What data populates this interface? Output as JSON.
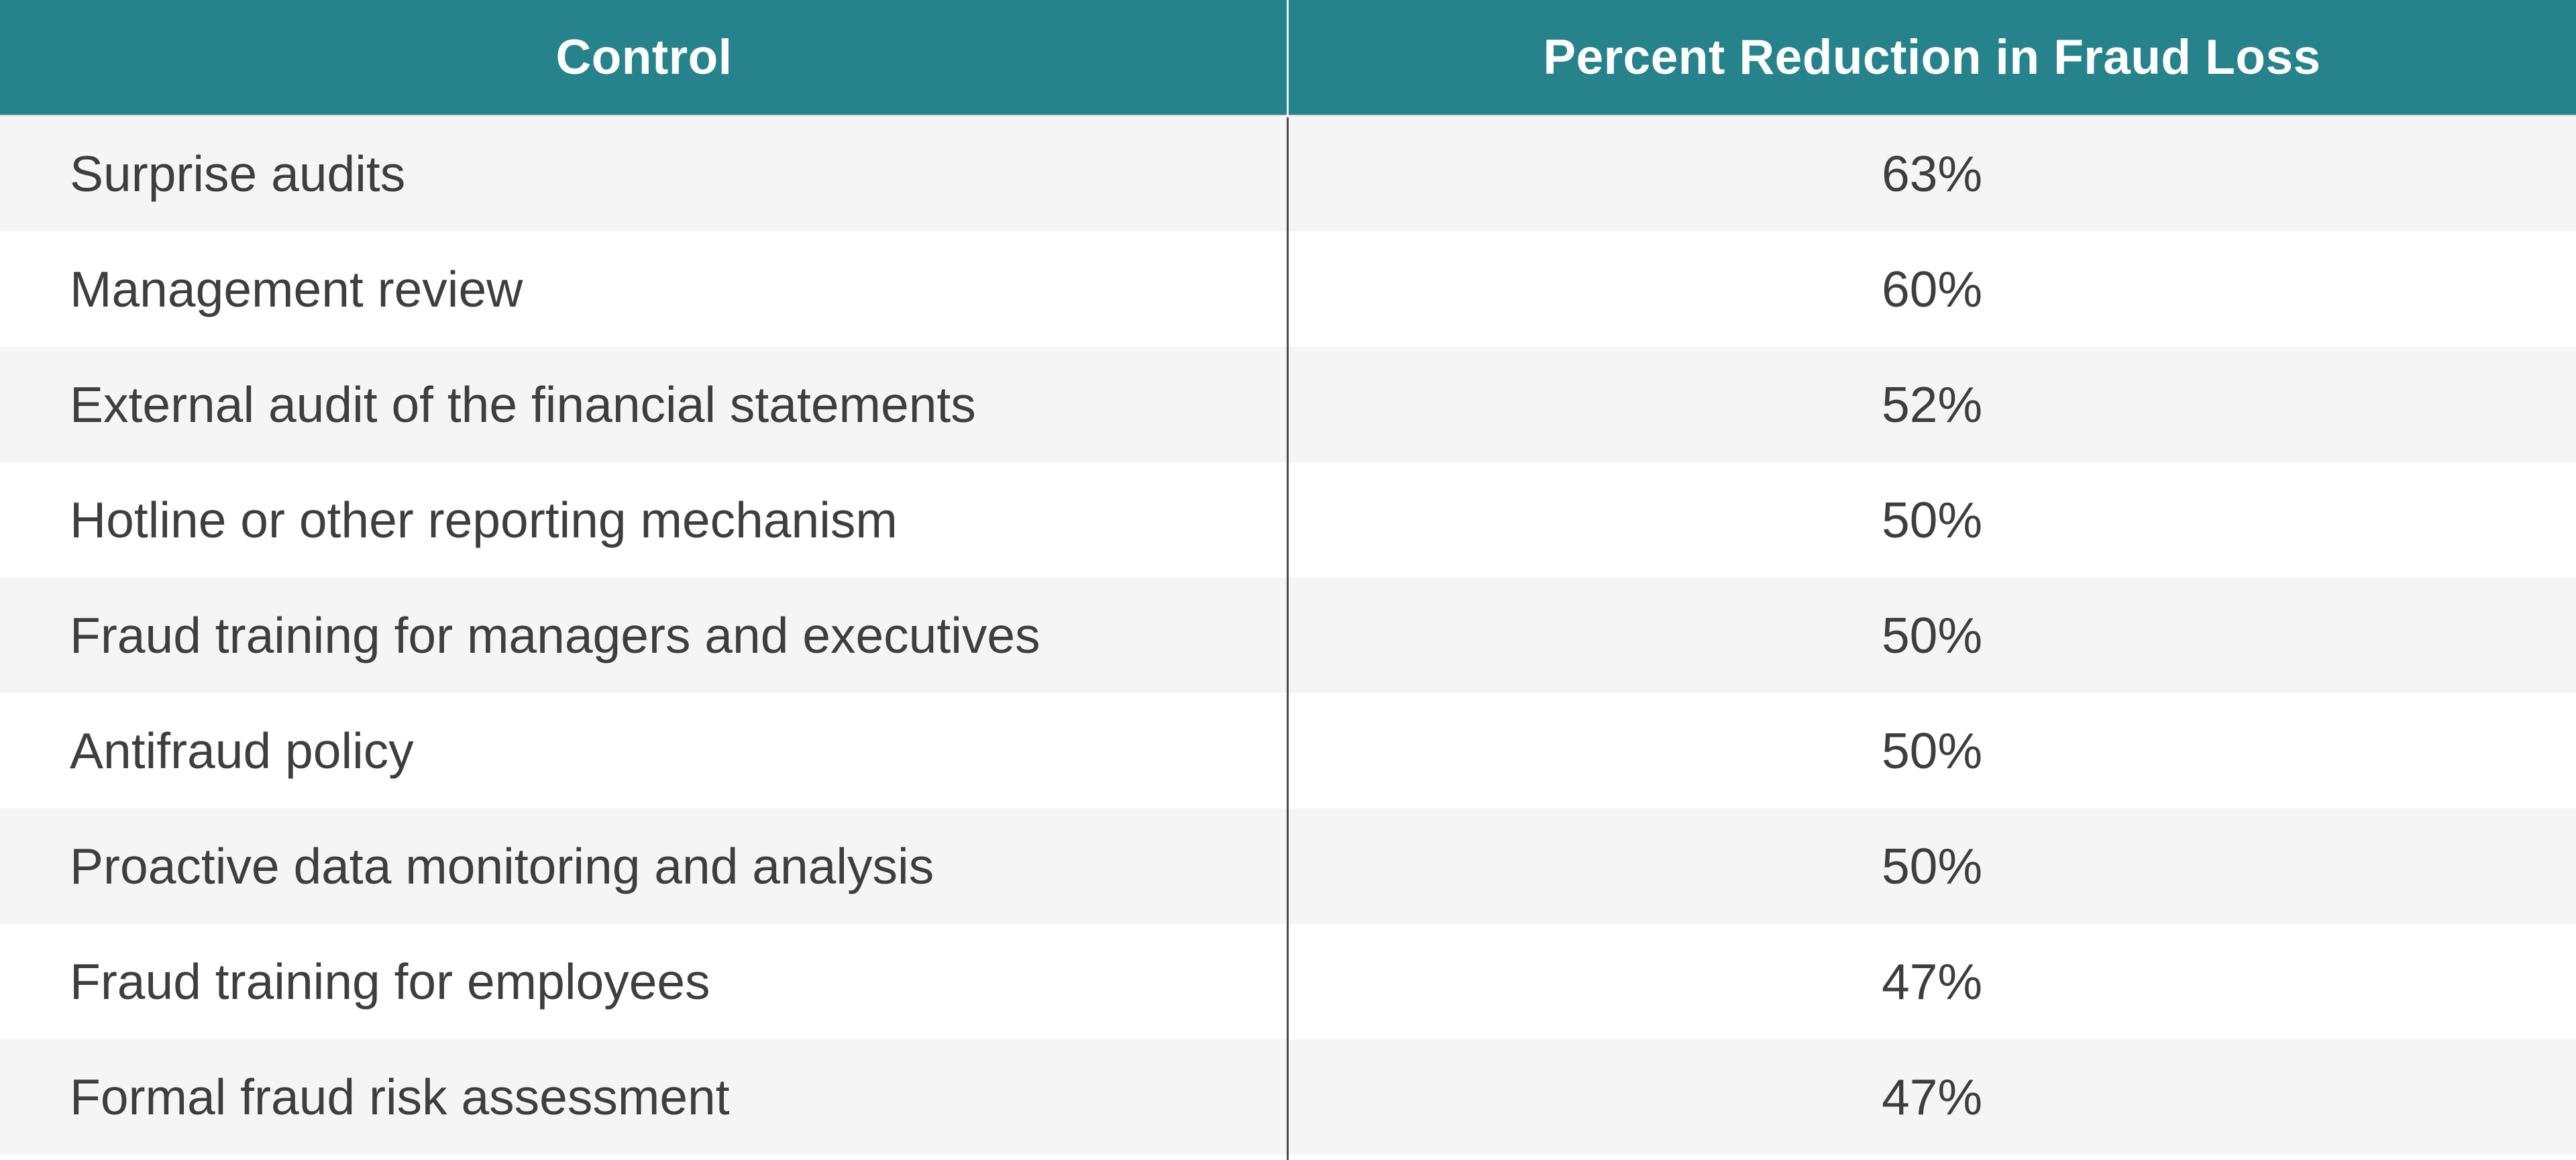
{
  "table": {
    "columns": [
      "Control",
      "Percent Reduction in Fraud Loss"
    ],
    "rows": [
      {
        "control": "Surprise audits",
        "reduction": "63%"
      },
      {
        "control": "Management review",
        "reduction": "60%"
      },
      {
        "control": "External audit of the financial statements",
        "reduction": "52%"
      },
      {
        "control": "Hotline or other reporting mechanism",
        "reduction": "50%"
      },
      {
        "control": "Fraud training for managers and executives",
        "reduction": "50%"
      },
      {
        "control": "Antifraud policy",
        "reduction": "50%"
      },
      {
        "control": "Proactive data monitoring and analysis",
        "reduction": "50%"
      },
      {
        "control": "Fraud training for employees",
        "reduction": "47%"
      },
      {
        "control": "Formal fraud risk assessment",
        "reduction": "47%"
      }
    ]
  },
  "colors": {
    "header_bg": "#26838b",
    "header_text": "#ffffff",
    "row_stripe_bg": "#f5f5f5",
    "row_plain_bg": "#ffffff",
    "body_text": "#3e3e3e",
    "divider_dark": "#4c4c4c",
    "divider_light_on_header": "#edf3f3",
    "header_underline": "#d6d6d6"
  },
  "chart_data": {
    "type": "table",
    "title": "",
    "columns": [
      "Control",
      "Percent Reduction in Fraud Loss"
    ],
    "rows": [
      [
        "Surprise audits",
        "63%"
      ],
      [
        "Management review",
        "60%"
      ],
      [
        "External audit of the financial statements",
        "52%"
      ],
      [
        "Hotline or other reporting mechanism",
        "50%"
      ],
      [
        "Fraud training for managers and executives",
        "50%"
      ],
      [
        "Antifraud policy",
        "50%"
      ],
      [
        "Proactive data monitoring and analysis",
        "50%"
      ],
      [
        "Fraud training for employees",
        "47%"
      ],
      [
        "Formal fraud risk assessment",
        "47%"
      ]
    ],
    "values_numeric_percent": [
      63,
      60,
      52,
      50,
      50,
      50,
      50,
      47,
      47
    ],
    "layout": "two-column table, striped rows starting gray, header teal with white bold centered labels, control names left-aligned, percentages centered"
  }
}
